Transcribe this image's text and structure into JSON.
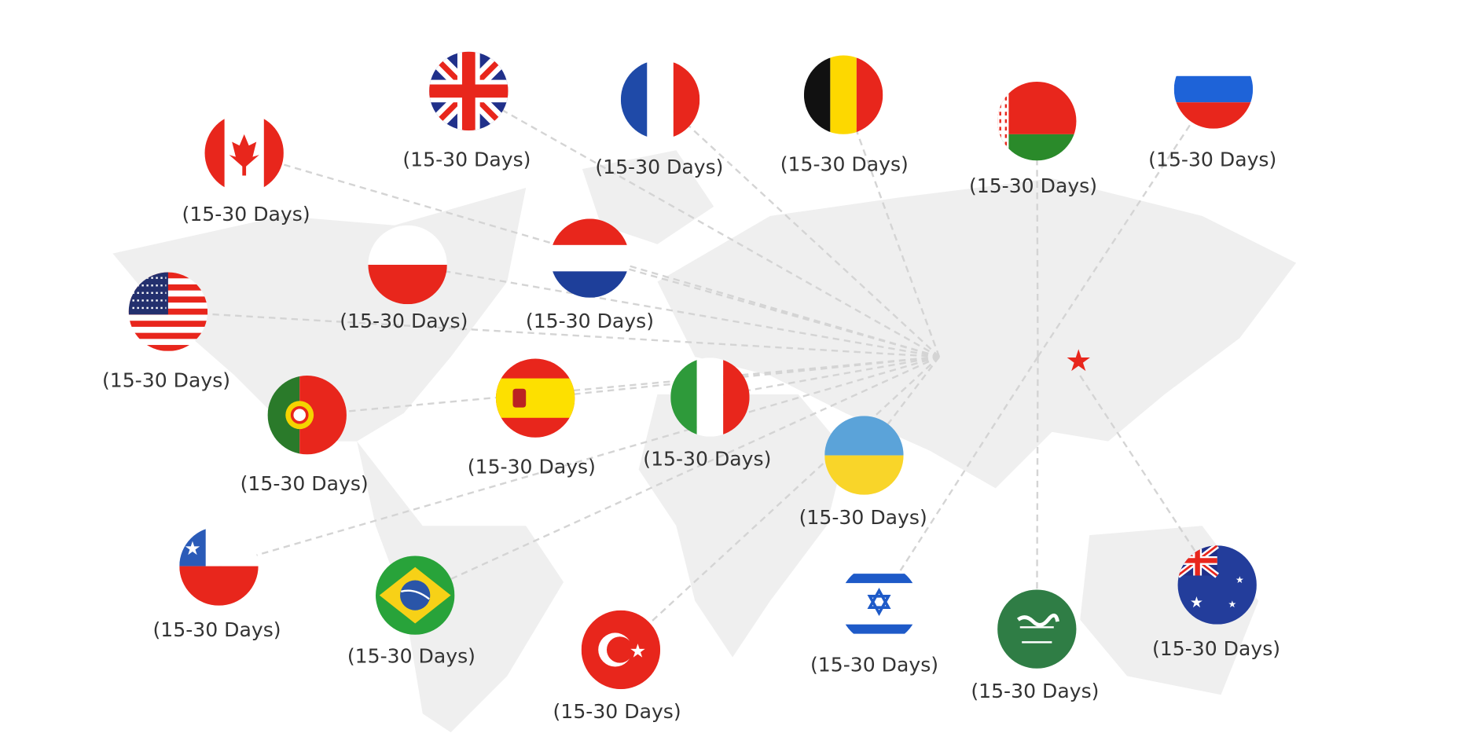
{
  "origin_marker": {
    "icon": "star-icon",
    "color": "#e8261c"
  },
  "destinations": [
    {
      "flag": "canada-flag-icon",
      "label": "(15-30 Days)"
    },
    {
      "flag": "uk-flag-icon",
      "label": "(15-30 Days)"
    },
    {
      "flag": "france-flag-icon",
      "label": "(15-30 Days)"
    },
    {
      "flag": "belgium-flag-icon",
      "label": "(15-30 Days)"
    },
    {
      "flag": "belarus-flag-icon",
      "label": "(15-30 Days)"
    },
    {
      "flag": "russia-flag-icon",
      "label": "(15-30 Days)"
    },
    {
      "flag": "poland-flag-icon",
      "label": "(15-30 Days)"
    },
    {
      "flag": "netherlands-flag-icon",
      "label": "(15-30 Days)"
    },
    {
      "flag": "usa-flag-icon",
      "label": "(15-30 Days)"
    },
    {
      "flag": "portugal-flag-icon",
      "label": "(15-30 Days)"
    },
    {
      "flag": "spain-flag-icon",
      "label": "(15-30 Days)"
    },
    {
      "flag": "italy-flag-icon",
      "label": "(15-30 Days)"
    },
    {
      "flag": "ukraine-flag-icon",
      "label": "(15-30 Days)"
    },
    {
      "flag": "chile-flag-icon",
      "label": "(15-30 Days)"
    },
    {
      "flag": "brazil-flag-icon",
      "label": "(15-30 Days)"
    },
    {
      "flag": "turkey-flag-icon",
      "label": "(15-30 Days)"
    },
    {
      "flag": "israel-flag-icon",
      "label": "(15-30 Days)"
    },
    {
      "flag": "saudi-arabia-flag-icon",
      "label": "(15-30 Days)"
    },
    {
      "flag": "australia-flag-icon",
      "label": "(15-30 Days)"
    }
  ]
}
